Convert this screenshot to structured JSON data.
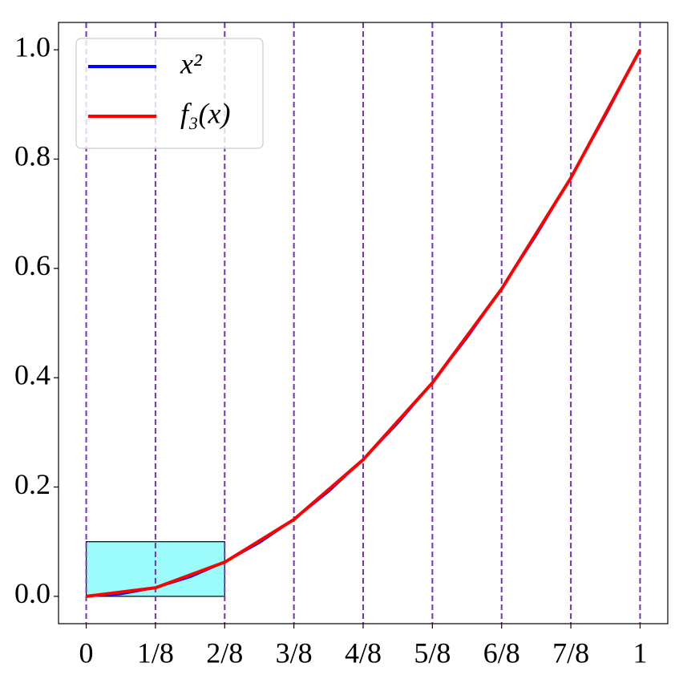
{
  "chart_data": {
    "type": "line",
    "xlim": [
      -0.05,
      1.05
    ],
    "ylim": [
      -0.05,
      1.05
    ],
    "xticks": [
      0,
      {
        "value": 0.125,
        "label": "1/8"
      },
      {
        "value": 0.25,
        "label": "2/8"
      },
      {
        "value": 0.375,
        "label": "3/8"
      },
      {
        "value": 0.5,
        "label": "4/8"
      },
      {
        "value": 0.625,
        "label": "5/8"
      },
      {
        "value": 0.75,
        "label": "6/8"
      },
      {
        "value": 0.875,
        "label": "7/8"
      },
      1
    ],
    "yticks": [
      {
        "value": 0,
        "label": "0.0"
      },
      0.2,
      0.4,
      0.6,
      0.8,
      {
        "value": 1,
        "label": "1.0"
      }
    ],
    "vlines": [
      0,
      0.125,
      0.25,
      0.375,
      0.5,
      0.625,
      0.75,
      0.875,
      1
    ],
    "vline_color": "#7b2fbe",
    "rectangle": {
      "x": [
        0,
        0.25
      ],
      "y": [
        0,
        0.1
      ],
      "color": "#9cfbfb"
    },
    "series": [
      {
        "name": "x²",
        "color": "#0000ff",
        "x": [
          0,
          0.0625,
          0.125,
          0.1875,
          0.25,
          0.3125,
          0.375,
          0.4375,
          0.5,
          0.5625,
          0.625,
          0.6875,
          0.75,
          0.8125,
          0.875,
          0.9375,
          1
        ],
        "values": [
          0,
          0.00390625,
          0.015625,
          0.03515625,
          0.0625,
          0.09765625,
          0.140625,
          0.19140625,
          0.25,
          0.31640625,
          0.390625,
          0.47265625,
          0.5625,
          0.66015625,
          0.765625,
          0.87890625,
          1
        ]
      },
      {
        "name": "f₃(x)",
        "color": "#ff0000",
        "x": [
          0,
          0.125,
          0.25,
          0.375,
          0.5,
          0.625,
          0.75,
          0.875,
          1
        ],
        "values": [
          0,
          0.015625,
          0.0625,
          0.140625,
          0.25,
          0.390625,
          0.5625,
          0.765625,
          1
        ]
      }
    ]
  }
}
